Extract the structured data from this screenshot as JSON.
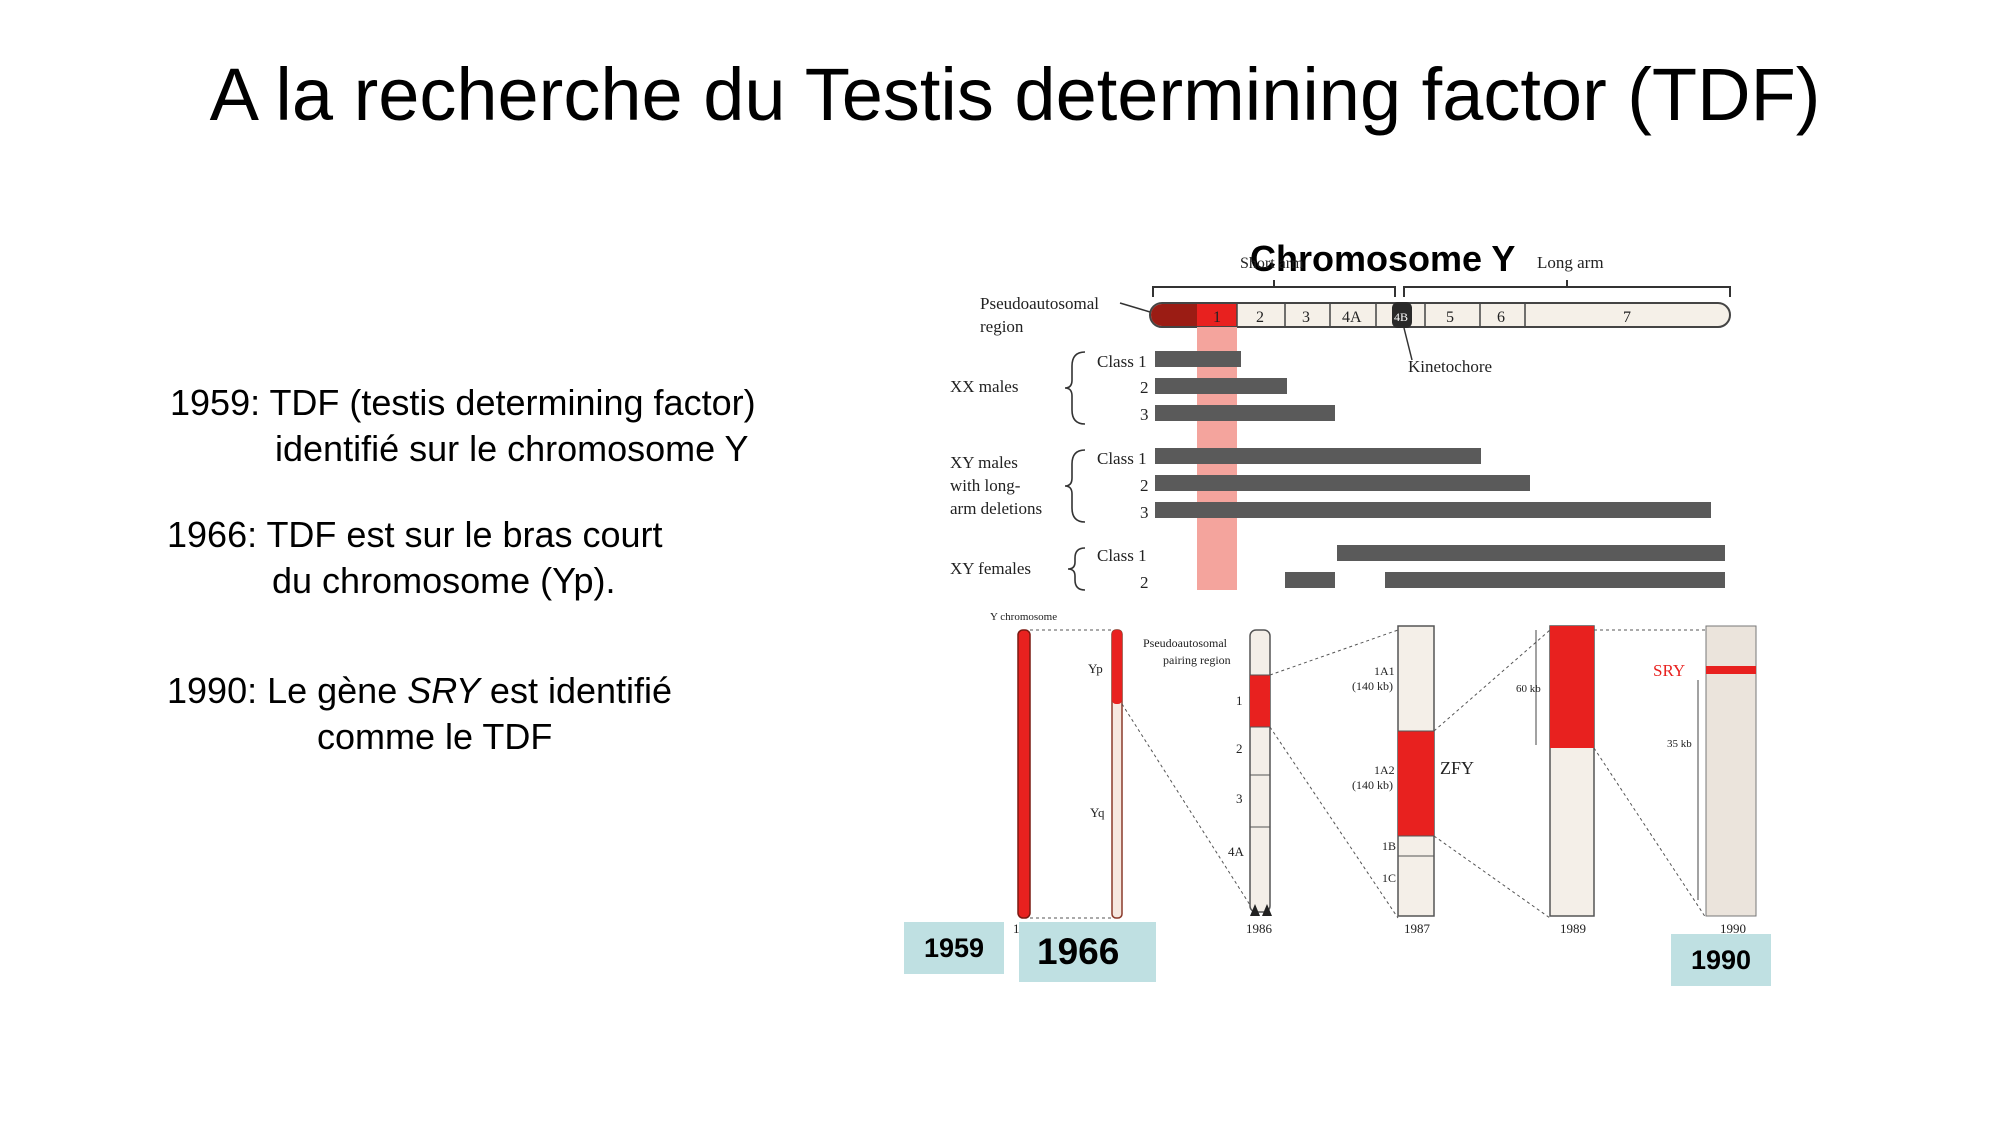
{
  "title": "A la recherche du Testis determining factor (TDF)",
  "facts": [
    {
      "year_line": "1959: TDF (testis determining factor)",
      "cont": "identifié sur le chromosome Y"
    },
    {
      "year_line": "1966: TDF est sur le bras court",
      "cont": "du chromosome (Yp)."
    },
    {
      "prefix": "1990: Le gène ",
      "gene": "SRY",
      "suffix": " est identifié",
      "cont": "comme le TDF"
    }
  ],
  "diagram": {
    "heading": "Chromosome Y",
    "short_arm": "Short arm",
    "long_arm": "Long arm",
    "pseudo_line1": "Pseudoautosomal",
    "pseudo_line2": "region",
    "kinetochore": "Kinetochore",
    "segments": [
      "1",
      "2",
      "3",
      "4A",
      "4B",
      "5",
      "6",
      "7"
    ],
    "groups": [
      {
        "l1": "XX males",
        "l2": "",
        "l3": ""
      },
      {
        "l1": "XY males",
        "l2": "with long-",
        "l3": "arm deletions"
      },
      {
        "l1": "XY females",
        "l2": "",
        "l3": ""
      }
    ],
    "class_labels": [
      "Class 1",
      "2",
      "3",
      "Class 1",
      "2",
      "3",
      "Class 1",
      "2"
    ],
    "zoom_caption": "Y chromosome",
    "yp": "Yp",
    "yq": "Yq",
    "pseudo_pairing_1": "Pseudoautosomal",
    "pseudo_pairing_2": "pairing region",
    "col3_marks": [
      "1",
      "2",
      "3",
      "4A"
    ],
    "la1": "1A1",
    "la1kb": "(140 kb)",
    "la2": "1A2",
    "la2kb": "(140 kb)",
    "ib": "1B",
    "ic": "1C",
    "zfy": "ZFY",
    "kb60": "60 kb",
    "sry": "SRY",
    "kb35": "35 kb",
    "col_years": [
      "1",
      "1986",
      "1987",
      "1989",
      "1990"
    ]
  },
  "year_badges": [
    "1959",
    "1966",
    "1990"
  ],
  "colors": {
    "red": "#e8211f",
    "pink": "#f4a49d",
    "bar_gray": "#5a5a5a",
    "badge": "#bfe0e2"
  }
}
